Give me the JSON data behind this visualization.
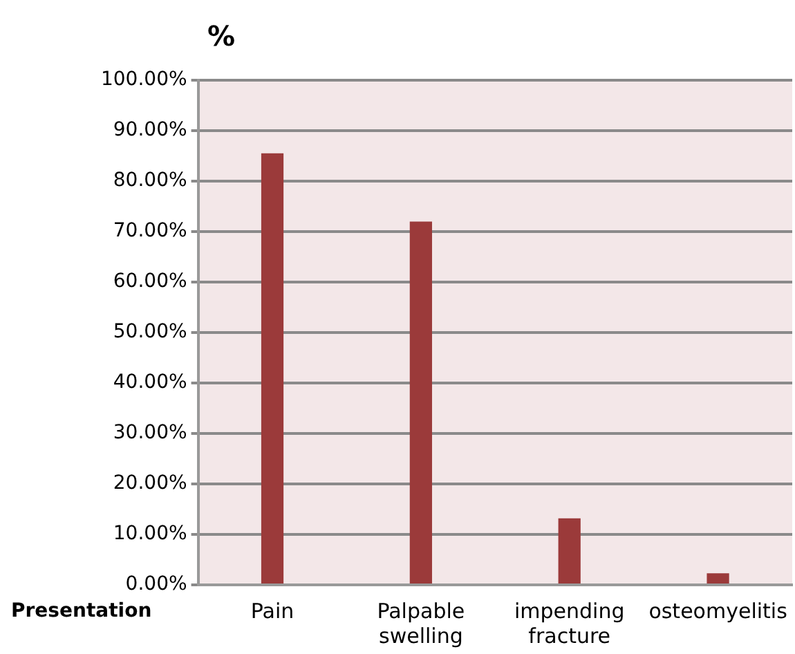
{
  "chart_data": {
    "type": "bar",
    "ylabel": "%",
    "xlabel": "Presentation",
    "categories": [
      "Pain",
      "Palpable swelling",
      "impending fracture",
      "osteomyelitis"
    ],
    "values": [
      85.5,
      72,
      13.2,
      2.3
    ],
    "color": "#9b3a3a",
    "ylim": [
      0,
      100
    ],
    "yticks": [
      {
        "value": 0,
        "label": "0.00%"
      },
      {
        "value": 10,
        "label": "10.00%"
      },
      {
        "value": 20,
        "label": "20.00%"
      },
      {
        "value": 30,
        "label": "30.00%"
      },
      {
        "value": 40,
        "label": "40.00%"
      },
      {
        "value": 50,
        "label": "50.00%"
      },
      {
        "value": 60,
        "label": "60.00%"
      },
      {
        "value": 70,
        "label": "70.00%"
      },
      {
        "value": 80,
        "label": "80.00%"
      },
      {
        "value": 90,
        "label": "90.00%"
      },
      {
        "value": 100,
        "label": "100.00%"
      }
    ],
    "grid": "y"
  }
}
